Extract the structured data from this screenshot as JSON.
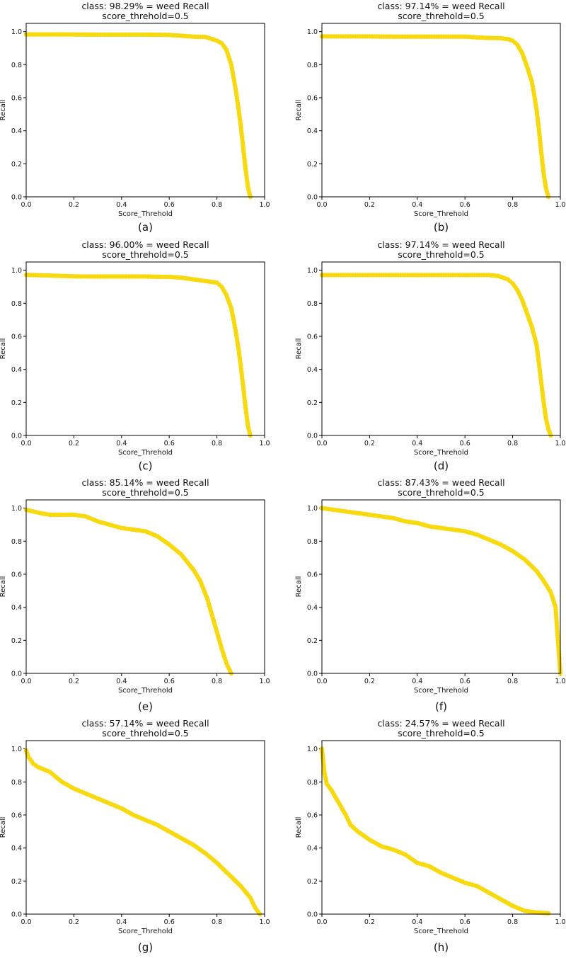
{
  "chart_data": [
    {
      "type": "line",
      "panel": "(a)",
      "title": "class: 98.29% = weed Recall",
      "subtitle": "score_threhold=0.5",
      "xlabel": "Score_Threhold",
      "ylabel": "Recall",
      "xlim": [
        0,
        1
      ],
      "ylim": [
        0,
        1.05
      ],
      "xticks": [
        "0.0",
        "0.2",
        "0.4",
        "0.6",
        "0.8",
        "1.0"
      ],
      "yticks": [
        "0.0",
        "0.2",
        "0.4",
        "0.6",
        "0.8",
        "1.0"
      ],
      "grid": false,
      "color": "#f7d90f",
      "x": [
        0.0,
        0.1,
        0.2,
        0.3,
        0.4,
        0.5,
        0.6,
        0.65,
        0.7,
        0.75,
        0.78,
        0.8,
        0.82,
        0.84,
        0.86,
        0.87,
        0.88,
        0.89,
        0.9,
        0.91,
        0.92,
        0.93,
        0.94
      ],
      "y": [
        0.983,
        0.983,
        0.983,
        0.982,
        0.982,
        0.982,
        0.98,
        0.975,
        0.97,
        0.968,
        0.955,
        0.945,
        0.93,
        0.89,
        0.8,
        0.72,
        0.64,
        0.54,
        0.43,
        0.3,
        0.17,
        0.06,
        0.0
      ]
    },
    {
      "type": "line",
      "panel": "(b)",
      "title": "class: 97.14% = weed Recall",
      "subtitle": "score_threhold=0.5",
      "xlabel": "Score_Threhold",
      "ylabel": "Recall",
      "xlim": [
        0,
        1
      ],
      "ylim": [
        0,
        1.05
      ],
      "xticks": [
        "0.0",
        "0.2",
        "0.4",
        "0.6",
        "0.8",
        "1.0"
      ],
      "yticks": [
        "0.0",
        "0.2",
        "0.4",
        "0.6",
        "0.8",
        "1.0"
      ],
      "grid": false,
      "color": "#f7d90f",
      "x": [
        0.0,
        0.1,
        0.2,
        0.3,
        0.4,
        0.5,
        0.6,
        0.65,
        0.7,
        0.75,
        0.78,
        0.8,
        0.82,
        0.84,
        0.86,
        0.88,
        0.89,
        0.9,
        0.91,
        0.92,
        0.93,
        0.94,
        0.95
      ],
      "y": [
        0.971,
        0.971,
        0.971,
        0.97,
        0.97,
        0.97,
        0.97,
        0.965,
        0.962,
        0.96,
        0.955,
        0.945,
        0.92,
        0.87,
        0.79,
        0.7,
        0.62,
        0.53,
        0.41,
        0.27,
        0.14,
        0.05,
        0.0
      ]
    },
    {
      "type": "line",
      "panel": "(c)",
      "title": "class: 96.00% = weed Recall",
      "subtitle": "score_threhold=0.5",
      "xlabel": "Score_Threhold",
      "ylabel": "Recall",
      "xlim": [
        0,
        1
      ],
      "ylim": [
        0,
        1.05
      ],
      "xticks": [
        "0.0",
        "0.2",
        "0.4",
        "0.6",
        "0.8",
        "1.0"
      ],
      "yticks": [
        "0.0",
        "0.2",
        "0.4",
        "0.6",
        "0.8",
        "1.0"
      ],
      "grid": false,
      "color": "#f7d90f",
      "x": [
        0.0,
        0.05,
        0.1,
        0.2,
        0.3,
        0.4,
        0.5,
        0.6,
        0.65,
        0.7,
        0.75,
        0.8,
        0.82,
        0.84,
        0.86,
        0.87,
        0.88,
        0.89,
        0.9,
        0.91,
        0.92,
        0.93,
        0.94
      ],
      "y": [
        0.972,
        0.97,
        0.968,
        0.963,
        0.962,
        0.962,
        0.962,
        0.96,
        0.955,
        0.945,
        0.935,
        0.925,
        0.9,
        0.85,
        0.77,
        0.7,
        0.62,
        0.53,
        0.42,
        0.3,
        0.17,
        0.06,
        0.0
      ]
    },
    {
      "type": "line",
      "panel": "(d)",
      "title": "class: 97.14% = weed Recall",
      "subtitle": "score_threhold=0.5",
      "xlabel": "Score_Threhold",
      "ylabel": "Recall",
      "xlim": [
        0,
        1
      ],
      "ylim": [
        0,
        1.05
      ],
      "xticks": [
        "0.0",
        "0.2",
        "0.4",
        "0.6",
        "0.8",
        "1.0"
      ],
      "yticks": [
        "0.0",
        "0.2",
        "0.4",
        "0.6",
        "0.8",
        "1.0"
      ],
      "grid": false,
      "color": "#f7d90f",
      "x": [
        0.0,
        0.1,
        0.2,
        0.3,
        0.4,
        0.5,
        0.6,
        0.7,
        0.74,
        0.78,
        0.8,
        0.82,
        0.84,
        0.86,
        0.88,
        0.9,
        0.91,
        0.92,
        0.93,
        0.94,
        0.95,
        0.96
      ],
      "y": [
        0.971,
        0.971,
        0.971,
        0.971,
        0.971,
        0.971,
        0.971,
        0.971,
        0.965,
        0.945,
        0.92,
        0.88,
        0.82,
        0.74,
        0.66,
        0.55,
        0.44,
        0.32,
        0.2,
        0.1,
        0.04,
        0.0
      ]
    },
    {
      "type": "line",
      "panel": "(e)",
      "title": "class: 85.14% = weed Recall",
      "subtitle": "score_threhold=0.5",
      "xlabel": "Score_Threhold",
      "ylabel": "Recall",
      "xlim": [
        0,
        1
      ],
      "ylim": [
        0,
        1.05
      ],
      "xticks": [
        "0.0",
        "0.2",
        "0.4",
        "0.6",
        "0.8",
        "1.0"
      ],
      "yticks": [
        "0.0",
        "0.2",
        "0.4",
        "0.6",
        "0.8",
        "1.0"
      ],
      "grid": false,
      "color": "#f7d90f",
      "x": [
        0.0,
        0.03,
        0.06,
        0.1,
        0.15,
        0.2,
        0.25,
        0.3,
        0.35,
        0.4,
        0.45,
        0.5,
        0.55,
        0.6,
        0.65,
        0.7,
        0.73,
        0.76,
        0.78,
        0.8,
        0.82,
        0.84,
        0.86
      ],
      "y": [
        0.99,
        0.98,
        0.97,
        0.96,
        0.96,
        0.96,
        0.95,
        0.92,
        0.9,
        0.88,
        0.87,
        0.86,
        0.83,
        0.78,
        0.72,
        0.63,
        0.56,
        0.45,
        0.35,
        0.25,
        0.15,
        0.06,
        0.0
      ]
    },
    {
      "type": "line",
      "panel": "(f)",
      "title": "class: 87.43% = weed Recall",
      "subtitle": "score_threhold=0.5",
      "xlabel": "Score_Threhold",
      "ylabel": "Recall",
      "xlim": [
        0,
        1
      ],
      "ylim": [
        0,
        1.05
      ],
      "xticks": [
        "0.0",
        "0.2",
        "0.4",
        "0.6",
        "0.8",
        "1.0"
      ],
      "yticks": [
        "0.0",
        "0.2",
        "0.4",
        "0.6",
        "0.8",
        "1.0"
      ],
      "grid": false,
      "color": "#f7d90f",
      "x": [
        0.0,
        0.05,
        0.1,
        0.15,
        0.2,
        0.25,
        0.3,
        0.35,
        0.4,
        0.45,
        0.5,
        0.55,
        0.6,
        0.65,
        0.7,
        0.75,
        0.8,
        0.85,
        0.9,
        0.93,
        0.96,
        0.98,
        0.99,
        1.0
      ],
      "y": [
        1.0,
        0.99,
        0.98,
        0.97,
        0.96,
        0.95,
        0.94,
        0.92,
        0.91,
        0.89,
        0.88,
        0.87,
        0.86,
        0.84,
        0.81,
        0.78,
        0.74,
        0.69,
        0.62,
        0.56,
        0.49,
        0.4,
        0.2,
        0.0
      ]
    },
    {
      "type": "line",
      "panel": "(g)",
      "title": "class: 57.14% = weed Recall",
      "subtitle": "score_threhold=0.5",
      "xlabel": "Score_Threhold",
      "ylabel": "Recall",
      "xlim": [
        0,
        1
      ],
      "ylim": [
        0,
        1.05
      ],
      "xticks": [
        "0.0",
        "0.2",
        "0.4",
        "0.6",
        "0.8",
        "1.0"
      ],
      "yticks": [
        "0.0",
        "0.2",
        "0.4",
        "0.6",
        "0.8",
        "1.0"
      ],
      "grid": false,
      "color": "#f7d90f",
      "x": [
        0.0,
        0.01,
        0.03,
        0.05,
        0.1,
        0.15,
        0.2,
        0.25,
        0.3,
        0.35,
        0.4,
        0.45,
        0.5,
        0.55,
        0.6,
        0.65,
        0.7,
        0.75,
        0.8,
        0.85,
        0.9,
        0.94,
        0.96,
        0.98
      ],
      "y": [
        0.99,
        0.95,
        0.91,
        0.89,
        0.86,
        0.8,
        0.76,
        0.73,
        0.7,
        0.67,
        0.64,
        0.6,
        0.57,
        0.54,
        0.5,
        0.46,
        0.42,
        0.37,
        0.31,
        0.24,
        0.17,
        0.1,
        0.04,
        0.0
      ]
    },
    {
      "type": "line",
      "panel": "(h)",
      "title": "class: 24.57% = weed Recall",
      "subtitle": "score_threhold=0.5",
      "xlabel": "Score_Threhold",
      "ylabel": "Recall",
      "xlim": [
        0,
        1
      ],
      "ylim": [
        0,
        1.05
      ],
      "xticks": [
        "0.0",
        "0.2",
        "0.4",
        "0.6",
        "0.8",
        "1.0"
      ],
      "yticks": [
        "0.0",
        "0.2",
        "0.4",
        "0.6",
        "0.8",
        "1.0"
      ],
      "grid": false,
      "color": "#f7d90f",
      "x": [
        0.0,
        0.005,
        0.01,
        0.02,
        0.04,
        0.06,
        0.08,
        0.1,
        0.12,
        0.15,
        0.2,
        0.25,
        0.3,
        0.35,
        0.4,
        0.45,
        0.5,
        0.55,
        0.6,
        0.65,
        0.7,
        0.75,
        0.8,
        0.85,
        0.9,
        0.95
      ],
      "y": [
        1.0,
        0.93,
        0.86,
        0.79,
        0.75,
        0.7,
        0.65,
        0.6,
        0.54,
        0.5,
        0.45,
        0.41,
        0.39,
        0.36,
        0.31,
        0.29,
        0.25,
        0.22,
        0.19,
        0.17,
        0.13,
        0.09,
        0.05,
        0.02,
        0.01,
        0.005
      ]
    }
  ]
}
